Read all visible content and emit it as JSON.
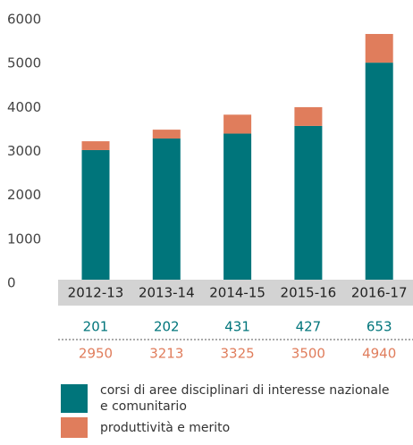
{
  "chart_data": {
    "type": "stacked_bar",
    "categories": [
      "2012-13",
      "2013-14",
      "2014-15",
      "2015-16",
      "2016-17"
    ],
    "series": [
      {
        "name": "corsi di aree disciplinari di interesse nazionale e comunitario",
        "color": "#00757b",
        "values": [
          2950,
          3213,
          3325,
          3500,
          4940
        ]
      },
      {
        "name": "produttività e merito",
        "color": "#e07d5c",
        "values": [
          201,
          202,
          431,
          427,
          653
        ]
      }
    ],
    "ylim": [
      0,
      6000
    ],
    "yticks": [
      0,
      1000,
      2000,
      3000,
      4000,
      5000,
      6000
    ],
    "grid": false
  }
}
